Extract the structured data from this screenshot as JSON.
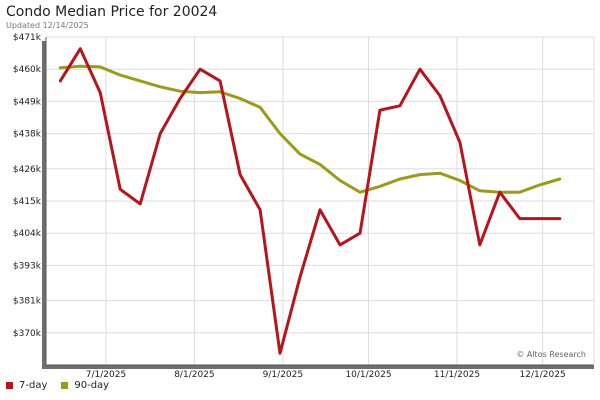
{
  "header": {
    "title": "Condo Median Price for 20024",
    "updated": "Updated 12/14/2025"
  },
  "watermark": "© Altos Research",
  "colors": {
    "seven_day": "#b5151b",
    "ninety_day": "#9b9b1b",
    "grid": "#dddddd",
    "axis": "#555555"
  },
  "chart_data": {
    "type": "line",
    "title": "Condo Median Price for 20024",
    "subtitle": "Updated 12/14/2025",
    "xlabel": "",
    "ylabel": "",
    "x": [
      "2025-06-15",
      "2025-06-22",
      "2025-06-29",
      "2025-07-06",
      "2025-07-13",
      "2025-07-20",
      "2025-07-27",
      "2025-08-03",
      "2025-08-10",
      "2025-08-17",
      "2025-08-24",
      "2025-08-31",
      "2025-09-07",
      "2025-09-14",
      "2025-09-21",
      "2025-09-28",
      "2025-10-05",
      "2025-10-12",
      "2025-10-19",
      "2025-10-26",
      "2025-11-02",
      "2025-11-09",
      "2025-11-16",
      "2025-11-23",
      "2025-11-30",
      "2025-12-07",
      "2025-12-14"
    ],
    "series": [
      {
        "name": "7-day",
        "color": "#b5151b",
        "values": [
          456000,
          467000,
          452000,
          419000,
          414000,
          438000,
          450000,
          460000,
          456000,
          424000,
          412000,
          363000,
          389000,
          412000,
          400000,
          404000,
          446000,
          447500,
          460000,
          451000,
          435000,
          400000,
          418000,
          409000,
          409000,
          409000,
          null
        ]
      },
      {
        "name": "90-day",
        "color": "#9b9b1b",
        "values": [
          460500,
          461000,
          460800,
          458000,
          456000,
          454000,
          452500,
          452000,
          452300,
          450000,
          447000,
          438000,
          431000,
          427500,
          422000,
          418000,
          420000,
          422500,
          424000,
          424500,
          422000,
          418500,
          418000,
          418000,
          420500,
          422500,
          null
        ]
      }
    ],
    "yticks": [
      "$370k",
      "$381k",
      "$393k",
      "$404k",
      "$415k",
      "$426k",
      "$438k",
      "$449k",
      "$460k",
      "$471k"
    ],
    "ytick_values": [
      370000,
      381000,
      393000,
      404000,
      415000,
      426000,
      438000,
      449000,
      460000,
      471000
    ],
    "ylim": [
      359000,
      471000
    ],
    "xticks": [
      "7/1/2025",
      "8/1/2025",
      "9/1/2025",
      "10/1/2025",
      "11/1/2025",
      "12/1/2025"
    ],
    "xtick_dates": [
      "2025-07-01",
      "2025-08-01",
      "2025-09-01",
      "2025-10-01",
      "2025-11-01",
      "2025-12-01"
    ],
    "xlim": [
      "2025-06-10",
      "2025-12-19"
    ],
    "grid": true,
    "legend": "bottom-left"
  }
}
